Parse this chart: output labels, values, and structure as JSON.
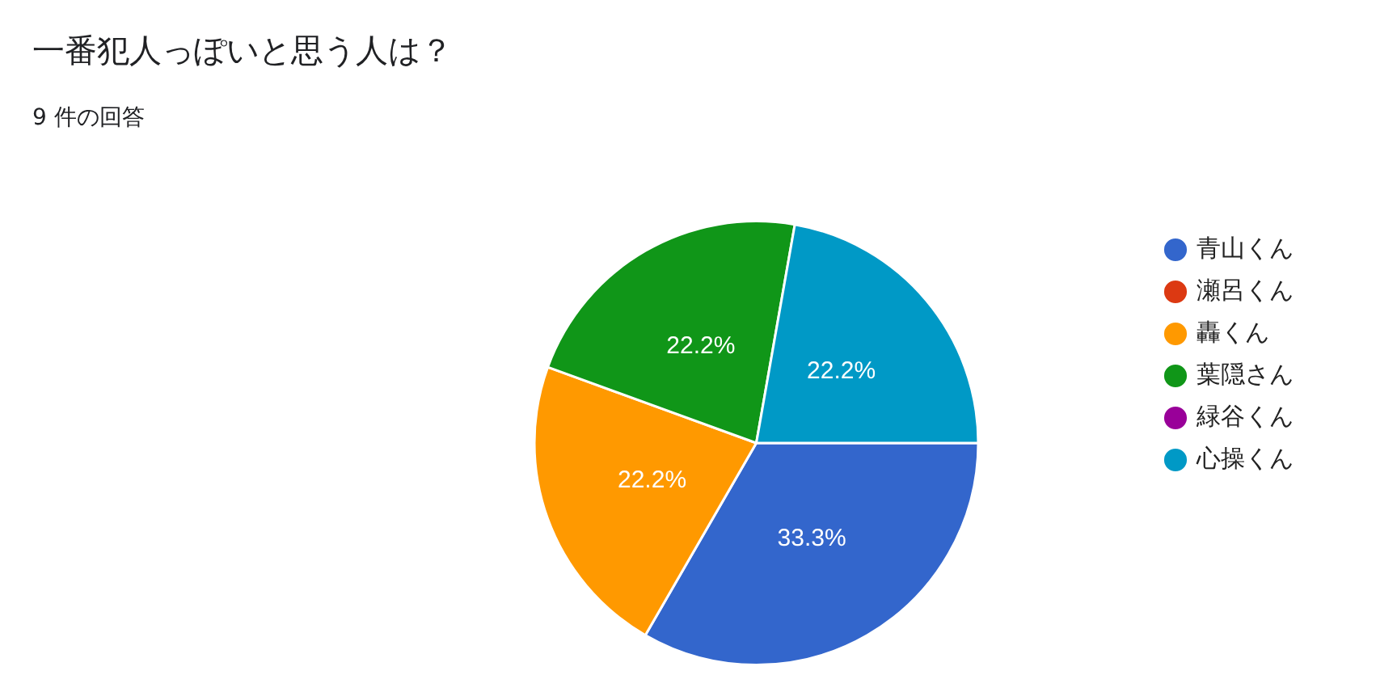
{
  "chart_data": {
    "type": "pie",
    "title": "一番犯人っぽいと思う人は？",
    "subtitle": "9 件の回答",
    "categories": [
      "青山くん",
      "瀬呂くん",
      "轟くん",
      "葉隠さん",
      "緑谷くん",
      "心操くん"
    ],
    "values": [
      33.3,
      0,
      22.2,
      22.2,
      0,
      22.2
    ],
    "colors": [
      "#3366cc",
      "#dc3912",
      "#ff9900",
      "#109618",
      "#990099",
      "#0099c6"
    ],
    "value_labels": [
      "33.3%",
      null,
      "22.2%",
      "22.2%",
      null,
      "22.2%"
    ],
    "legend": "right"
  }
}
